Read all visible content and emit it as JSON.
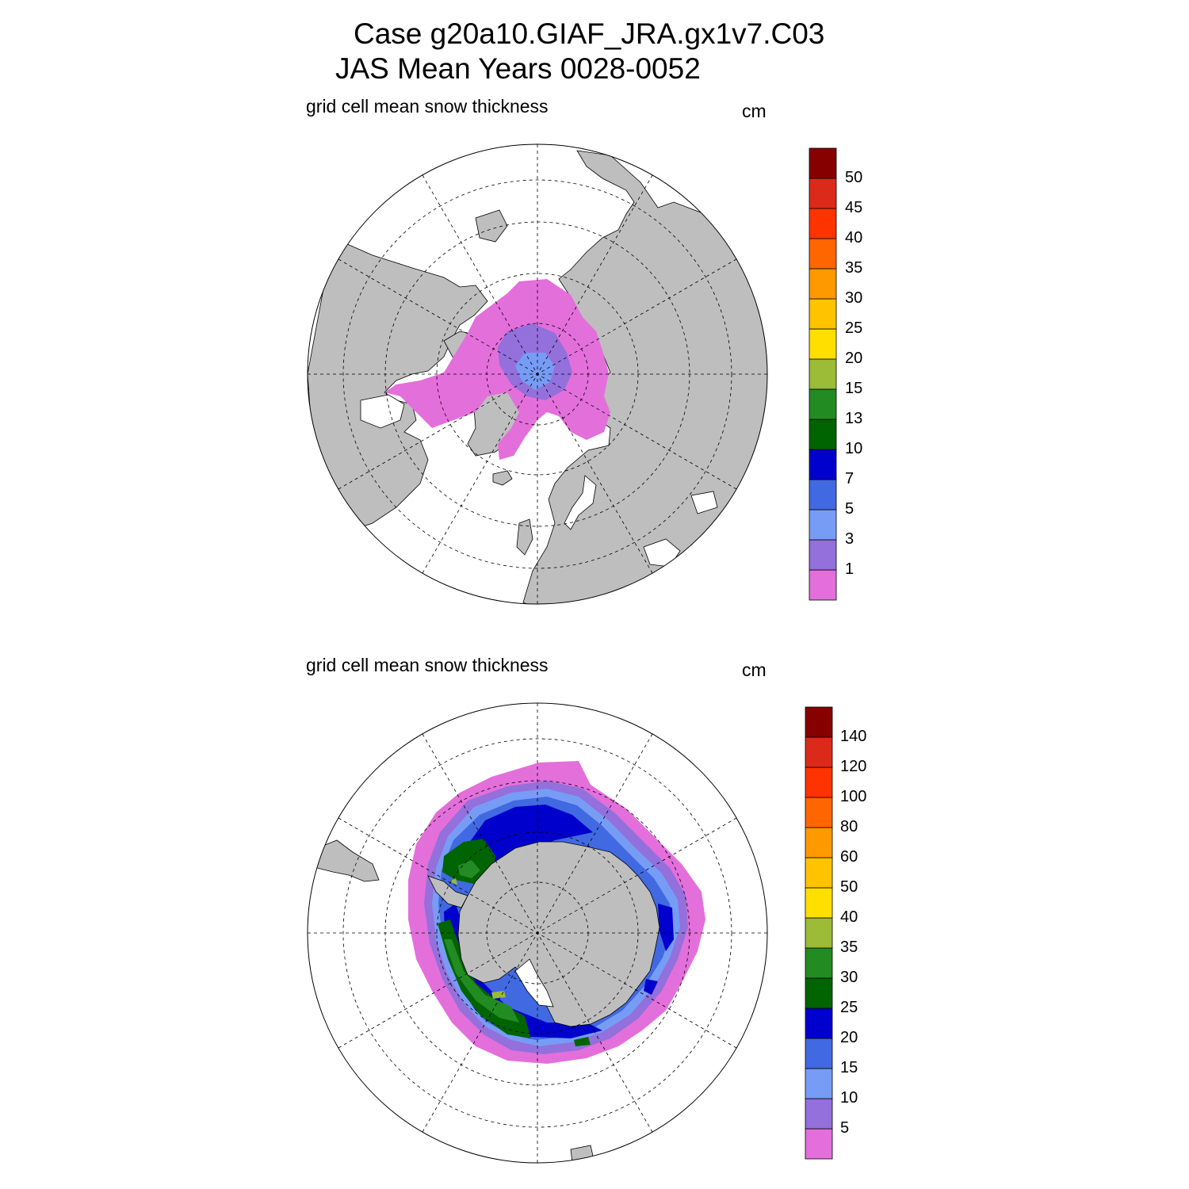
{
  "title": {
    "line1": "Case g20a10.GIAF_JRA.gx1v7.C03",
    "line2": "JAS Mean   Years 0028-0052"
  },
  "panels": [
    {
      "id": "north",
      "hemisphere": "Northern",
      "subtitle": "grid cell mean snow thickness",
      "units": "cm",
      "colorbar_levels": [
        "1",
        "3",
        "5",
        "7",
        "10",
        "13",
        "15",
        "20",
        "25",
        "30",
        "35",
        "40",
        "45",
        "50"
      ],
      "colorbar_colors": [
        "#e36fdb",
        "#9370db",
        "#779cf5",
        "#4169e1",
        "#0000cd",
        "#006400",
        "#228b22",
        "#9cbb36",
        "#ffdf00",
        "#ffc300",
        "#ff9900",
        "#ff6600",
        "#ff3300",
        "#dc2a1a",
        "#870000"
      ]
    },
    {
      "id": "south",
      "hemisphere": "Southern",
      "subtitle": "grid cell mean snow thickness",
      "units": "cm",
      "colorbar_levels": [
        "5",
        "10",
        "15",
        "20",
        "25",
        "30",
        "35",
        "40",
        "50",
        "60",
        "80",
        "100",
        "120",
        "140"
      ],
      "colorbar_colors": [
        "#e36fdb",
        "#9370db",
        "#779cf5",
        "#4169e1",
        "#0000cd",
        "#006400",
        "#228b22",
        "#9cbb36",
        "#ffdf00",
        "#ffc300",
        "#ff9900",
        "#ff6600",
        "#ff3300",
        "#dc2a1a",
        "#870000"
      ]
    }
  ],
  "colors": {
    "land": "#bebebe",
    "ocean": "#ffffff",
    "grid": "#000000"
  }
}
